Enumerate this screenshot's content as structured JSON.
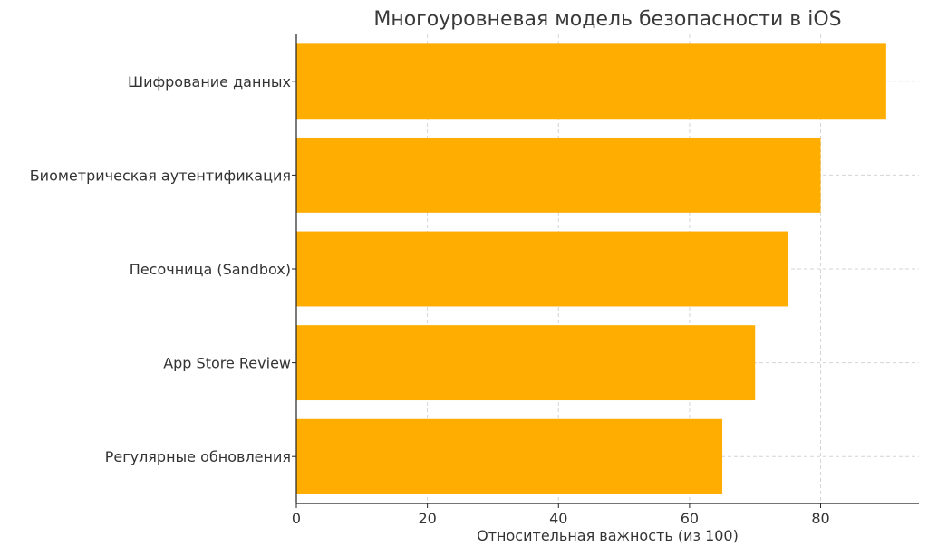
{
  "chart_data": {
    "type": "bar",
    "orientation": "horizontal",
    "title": "Многоуровневая модель безопасности в iOS",
    "xlabel": "Относительная важность (из 100)",
    "ylabel": "",
    "categories": [
      "Шифрование данных",
      "Биометрическая аутентификация",
      "Песочница (Sandbox)",
      "App Store Review",
      "Регулярные обновления"
    ],
    "values": [
      90,
      80,
      75,
      70,
      65
    ],
    "xlim": [
      0,
      95
    ],
    "xticks": [
      0,
      20,
      40,
      60,
      80
    ],
    "grid": true,
    "bar_color": "#FFAD00",
    "legend": "none"
  }
}
